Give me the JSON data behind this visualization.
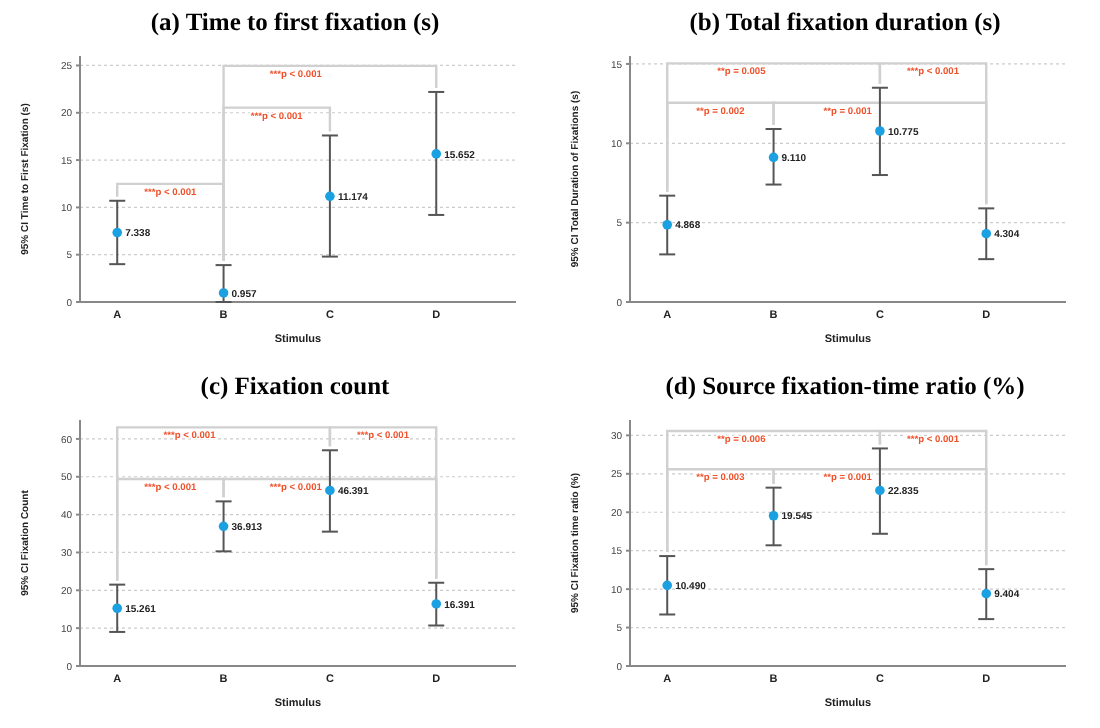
{
  "chart_data": [
    {
      "type": "scatter",
      "title": "(a) Time to first fixation (s)",
      "xlabel": "Stimulus",
      "ylabel": "95% CI Time to First Fixation (s)",
      "categories": [
        "A",
        "B",
        "C",
        "D"
      ],
      "series": [
        {
          "color": "#1ba1e2",
          "values": [
            7.338,
            0.957,
            11.174,
            15.652
          ],
          "errors": [
            [
              4.0,
              10.7
            ],
            [
              0,
              3.9
            ],
            [
              4.8,
              17.6
            ],
            [
              9.2,
              22.2
            ]
          ],
          "value_labels": [
            "7.338",
            "0.957",
            "11.174",
            "15.652"
          ]
        }
      ],
      "ylim": [
        0,
        26
      ],
      "yticks": [
        0,
        5,
        10,
        15,
        20,
        25
      ],
      "grid": "y",
      "marker": "circle",
      "annotations": [
        "***p < 0.001",
        "***p < 0.001",
        "***p < 0.001"
      ]
    },
    {
      "type": "scatter",
      "title": "(b) Total fixation duration (s)",
      "xlabel": "Stimulus",
      "ylabel": "95% CI Total Duration of Fixations (s)",
      "categories": [
        "A",
        "B",
        "C",
        "D"
      ],
      "series": [
        {
          "color": "#1ba1e2",
          "values": [
            4.868,
            9.11,
            10.775,
            4.304
          ],
          "errors": [
            [
              3.0,
              6.7
            ],
            [
              7.4,
              10.9
            ],
            [
              8.0,
              13.5
            ],
            [
              2.7,
              5.9
            ]
          ],
          "value_labels": [
            "4.868",
            "9.110",
            "10.775",
            "4.304"
          ]
        }
      ],
      "ylim": [
        0,
        15.5
      ],
      "yticks": [
        0,
        5,
        10,
        15
      ],
      "grid": "y",
      "marker": "circle",
      "annotations": [
        "**p = 0.005",
        "***p < 0.001",
        "**p = 0.002",
        "**p = 0.001"
      ]
    },
    {
      "type": "scatter",
      "title": "(c) Fixation count",
      "xlabel": "Stimulus",
      "ylabel": "95% CI Fixation Count",
      "categories": [
        "A",
        "B",
        "C",
        "D"
      ],
      "series": [
        {
          "color": "#1ba1e2",
          "values": [
            15.261,
            36.913,
            46.391,
            16.391
          ],
          "errors": [
            [
              9,
              21.5
            ],
            [
              30.3,
              43.5
            ],
            [
              35.5,
              57
            ],
            [
              10.7,
              22
            ]
          ],
          "value_labels": [
            "15.261",
            "36.913",
            "46.391",
            "16.391"
          ]
        }
      ],
      "ylim": [
        0,
        65
      ],
      "yticks": [
        0,
        10,
        20,
        30,
        40,
        50,
        60
      ],
      "grid": "y",
      "marker": "circle",
      "annotations": [
        "***p < 0.001",
        "***p < 0.001",
        "***p < 0.001",
        "***p < 0.001"
      ]
    },
    {
      "type": "scatter",
      "title": "(d) Source fixation-time ratio (%)",
      "xlabel": "Stimulus",
      "ylabel": "95% CI Fixation time ratio (%)",
      "categories": [
        "A",
        "B",
        "C",
        "D"
      ],
      "series": [
        {
          "color": "#1ba1e2",
          "values": [
            10.49,
            19.545,
            22.835,
            9.404
          ],
          "errors": [
            [
              6.7,
              14.3
            ],
            [
              15.7,
              23.2
            ],
            [
              17.2,
              28.3
            ],
            [
              6.1,
              12.6
            ]
          ],
          "value_labels": [
            "10.490",
            "19.545",
            "22.835",
            "9.404"
          ]
        }
      ],
      "ylim": [
        0,
        32
      ],
      "yticks": [
        0,
        5,
        10,
        15,
        20,
        25,
        30
      ],
      "grid": "y",
      "marker": "circle",
      "annotations": [
        "**p = 0.006",
        "***p < 0.001",
        "**p = 0.003",
        "**p = 0.001"
      ]
    }
  ]
}
